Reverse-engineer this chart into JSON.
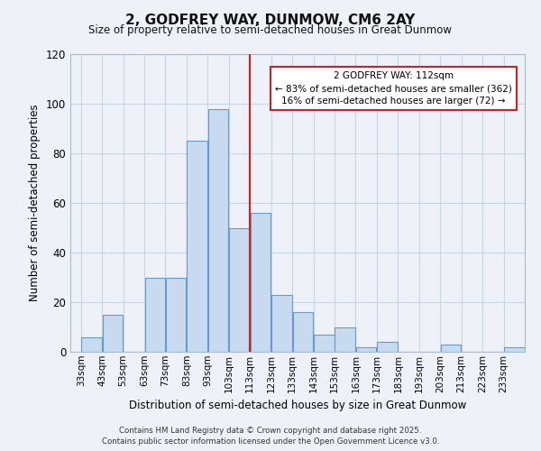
{
  "title": "2, GODFREY WAY, DUNMOW, CM6 2AY",
  "subtitle": "Size of property relative to semi-detached houses in Great Dunmow",
  "xlabel": "Distribution of semi-detached houses by size in Great Dunmow",
  "ylabel": "Number of semi-detached properties",
  "bin_labels": [
    "33sqm",
    "43sqm",
    "53sqm",
    "63sqm",
    "73sqm",
    "83sqm",
    "93sqm",
    "103sqm",
    "113sqm",
    "123sqm",
    "133sqm",
    "143sqm",
    "153sqm",
    "163sqm",
    "173sqm",
    "183sqm",
    "193sqm",
    "203sqm",
    "213sqm",
    "223sqm",
    "233sqm"
  ],
  "bin_edges": [
    33,
    43,
    53,
    63,
    73,
    83,
    93,
    103,
    113,
    123,
    133,
    143,
    153,
    163,
    173,
    183,
    193,
    203,
    213,
    223,
    233
  ],
  "bar_heights": [
    6,
    15,
    0,
    30,
    30,
    85,
    98,
    50,
    56,
    23,
    16,
    7,
    10,
    2,
    4,
    0,
    0,
    3,
    0,
    0,
    2
  ],
  "bar_color": "#c8daf0",
  "bar_edge_color": "#6699cc",
  "grid_color": "#c8d4e8",
  "vline_x": 113,
  "vline_color": "#cc2222",
  "annotation_title": "2 GODFREY WAY: 112sqm",
  "annotation_line1": "← 83% of semi-detached houses are smaller (362)",
  "annotation_line2": "16% of semi-detached houses are larger (72) →",
  "annotation_box_color": "#ffffff",
  "annotation_box_edge": "#cc2222",
  "ylim": [
    0,
    120
  ],
  "yticks": [
    0,
    20,
    40,
    60,
    80,
    100,
    120
  ],
  "footer1": "Contains HM Land Registry data © Crown copyright and database right 2025.",
  "footer2": "Contains public sector information licensed under the Open Government Licence v3.0.",
  "bg_color": "#eef2f8"
}
